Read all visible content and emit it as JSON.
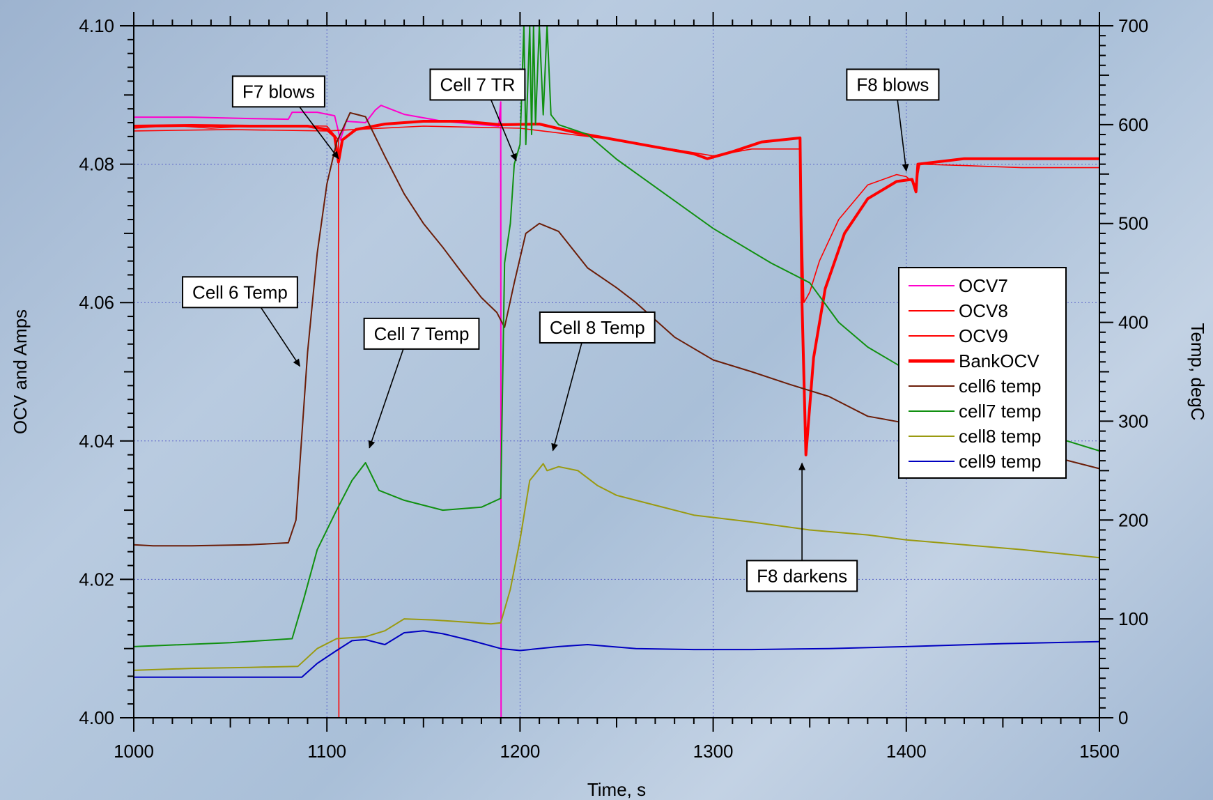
{
  "chart_data": {
    "type": "line",
    "title": "",
    "xlabel": "Time, s",
    "ylabel_left": "OCV and Amps",
    "ylabel_right": "Temp, degC",
    "xlim": [
      1000,
      1500
    ],
    "ylim_left": [
      4.0,
      4.1
    ],
    "ylim_right": [
      0,
      700
    ],
    "x_ticks": [
      "1000",
      "1100",
      "1200",
      "1300",
      "1400",
      "1500"
    ],
    "y_ticks_left": [
      "4.00",
      "4.02",
      "4.04",
      "4.06",
      "4.08",
      "4.10"
    ],
    "y_ticks_right": [
      "0",
      "100",
      "200",
      "300",
      "400",
      "500",
      "600",
      "700"
    ],
    "grid": true,
    "legend_position": "right",
    "series": [
      {
        "name": "OCV7",
        "axis": "left",
        "color": "#ff00cc",
        "width": 2,
        "legend_width": 2,
        "points": [
          [
            1000,
            4.0868
          ],
          [
            1030,
            4.0868
          ],
          [
            1060,
            4.0866
          ],
          [
            1080,
            4.0865
          ],
          [
            1082,
            4.0875
          ],
          [
            1095,
            4.0875
          ],
          [
            1104,
            4.087
          ],
          [
            1107,
            4.0835
          ],
          [
            1110,
            4.0862
          ],
          [
            1120,
            4.086
          ],
          [
            1125,
            4.0878
          ],
          [
            1128,
            4.0885
          ],
          [
            1140,
            4.0872
          ],
          [
            1160,
            4.0862
          ],
          [
            1180,
            4.0857
          ],
          [
            1189,
            4.0855
          ],
          [
            1190,
            4.089
          ],
          [
            1190.2,
            4.0
          ]
        ]
      },
      {
        "name": "OCV8",
        "axis": "left",
        "color": "#ff0000",
        "width": 1.6,
        "legend_width": 2,
        "points": [
          [
            1000,
            4.0852
          ],
          [
            1020,
            4.0856
          ],
          [
            1040,
            4.0852
          ],
          [
            1060,
            4.0855
          ],
          [
            1080,
            4.0856
          ],
          [
            1100,
            4.0855
          ],
          [
            1106,
            4.0835
          ],
          [
            1106.2,
            4.0
          ]
        ]
      },
      {
        "name": "OCV9",
        "axis": "left",
        "color": "#ff0000",
        "width": 1.6,
        "legend_width": 2,
        "points": [
          [
            1000,
            4.0848
          ],
          [
            1050,
            4.085
          ],
          [
            1100,
            4.0848
          ],
          [
            1150,
            4.0855
          ],
          [
            1200,
            4.0852
          ],
          [
            1250,
            4.0835
          ],
          [
            1300,
            4.0812
          ],
          [
            1320,
            4.0822
          ],
          [
            1345,
            4.0822
          ],
          [
            1347,
            4.06
          ],
          [
            1350,
            4.0615
          ],
          [
            1355,
            4.066
          ],
          [
            1365,
            4.072
          ],
          [
            1380,
            4.077
          ],
          [
            1395,
            4.0785
          ],
          [
            1400,
            4.0782
          ],
          [
            1405,
            4.077
          ],
          [
            1407,
            4.08
          ],
          [
            1430,
            4.0798
          ],
          [
            1460,
            4.0795
          ],
          [
            1500,
            4.0795
          ]
        ]
      },
      {
        "name": "BankOCV",
        "axis": "left",
        "color": "#ff0000",
        "width": 4,
        "legend_width": 5,
        "points": [
          [
            1000,
            4.0855
          ],
          [
            1030,
            4.0856
          ],
          [
            1060,
            4.0855
          ],
          [
            1090,
            4.0855
          ],
          [
            1100,
            4.085
          ],
          [
            1104,
            4.084
          ],
          [
            1106,
            4.0803
          ],
          [
            1108,
            4.0835
          ],
          [
            1115,
            4.085
          ],
          [
            1130,
            4.0858
          ],
          [
            1150,
            4.0862
          ],
          [
            1170,
            4.0862
          ],
          [
            1190,
            4.0857
          ],
          [
            1210,
            4.0858
          ],
          [
            1230,
            4.0845
          ],
          [
            1250,
            4.0835
          ],
          [
            1270,
            4.0825
          ],
          [
            1290,
            4.0815
          ],
          [
            1297,
            4.0808
          ],
          [
            1310,
            4.0818
          ],
          [
            1325,
            4.0832
          ],
          [
            1345,
            4.0838
          ],
          [
            1346,
            4.06
          ],
          [
            1348,
            4.038
          ],
          [
            1352,
            4.052
          ],
          [
            1358,
            4.062
          ],
          [
            1368,
            4.07
          ],
          [
            1380,
            4.075
          ],
          [
            1395,
            4.0775
          ],
          [
            1403,
            4.0778
          ],
          [
            1405,
            4.076
          ],
          [
            1406,
            4.08
          ],
          [
            1430,
            4.0808
          ],
          [
            1460,
            4.0808
          ],
          [
            1500,
            4.0808
          ]
        ]
      },
      {
        "name": "cell6 temp",
        "axis": "right",
        "color": "#6b1d08",
        "width": 2,
        "legend_width": 2,
        "points": [
          [
            1000,
            175
          ],
          [
            1010,
            174
          ],
          [
            1030,
            174
          ],
          [
            1060,
            175
          ],
          [
            1080,
            177
          ],
          [
            1084,
            200
          ],
          [
            1090,
            370
          ],
          [
            1095,
            470
          ],
          [
            1100,
            540
          ],
          [
            1105,
            582
          ],
          [
            1112,
            612
          ],
          [
            1120,
            608
          ],
          [
            1130,
            568
          ],
          [
            1140,
            530
          ],
          [
            1150,
            500
          ],
          [
            1160,
            476
          ],
          [
            1170,
            450
          ],
          [
            1180,
            425
          ],
          [
            1188,
            410
          ],
          [
            1192,
            395
          ],
          [
            1197,
            440
          ],
          [
            1203,
            490
          ],
          [
            1210,
            500
          ],
          [
            1220,
            492
          ],
          [
            1235,
            455
          ],
          [
            1250,
            435
          ],
          [
            1260,
            420
          ],
          [
            1280,
            385
          ],
          [
            1300,
            362
          ],
          [
            1320,
            350
          ],
          [
            1340,
            337
          ],
          [
            1360,
            325
          ],
          [
            1380,
            305
          ],
          [
            1400,
            298
          ],
          [
            1420,
            290
          ],
          [
            1440,
            280
          ],
          [
            1460,
            272
          ],
          [
            1480,
            262
          ],
          [
            1500,
            252
          ]
        ]
      },
      {
        "name": "cell7 temp",
        "axis": "right",
        "color": "#109010",
        "width": 2,
        "legend_width": 2,
        "points": [
          [
            1000,
            72
          ],
          [
            1050,
            76
          ],
          [
            1082,
            80
          ],
          [
            1088,
            120
          ],
          [
            1095,
            170
          ],
          [
            1105,
            210
          ],
          [
            1113,
            240
          ],
          [
            1120,
            258
          ],
          [
            1127,
            230
          ],
          [
            1140,
            220
          ],
          [
            1160,
            210
          ],
          [
            1180,
            213
          ],
          [
            1190,
            222
          ],
          [
            1192,
            460
          ],
          [
            1195,
            500
          ],
          [
            1197,
            560
          ],
          [
            1200,
            580
          ],
          [
            1202,
            700
          ],
          [
            1203,
            580
          ],
          [
            1205,
            700
          ],
          [
            1206,
            590
          ],
          [
            1207,
            700
          ],
          [
            1208,
            600
          ],
          [
            1210,
            700
          ],
          [
            1212,
            610
          ],
          [
            1214,
            700
          ],
          [
            1216,
            610
          ],
          [
            1220,
            600
          ],
          [
            1235,
            590
          ],
          [
            1250,
            565
          ],
          [
            1275,
            530
          ],
          [
            1300,
            495
          ],
          [
            1330,
            460
          ],
          [
            1350,
            440
          ],
          [
            1365,
            400
          ],
          [
            1380,
            375
          ],
          [
            1400,
            352
          ],
          [
            1420,
            330
          ],
          [
            1440,
            310
          ],
          [
            1460,
            295
          ],
          [
            1480,
            282
          ],
          [
            1500,
            270
          ]
        ]
      },
      {
        "name": "cell8 temp",
        "axis": "right",
        "color": "#9a9a10",
        "width": 2,
        "legend_width": 2,
        "points": [
          [
            1000,
            48
          ],
          [
            1030,
            50
          ],
          [
            1060,
            51
          ],
          [
            1085,
            52
          ],
          [
            1095,
            70
          ],
          [
            1105,
            80
          ],
          [
            1120,
            82
          ],
          [
            1130,
            88
          ],
          [
            1140,
            100
          ],
          [
            1155,
            99
          ],
          [
            1170,
            97
          ],
          [
            1185,
            95
          ],
          [
            1190,
            96
          ],
          [
            1195,
            130
          ],
          [
            1200,
            180
          ],
          [
            1205,
            240
          ],
          [
            1210,
            252
          ],
          [
            1212,
            257
          ],
          [
            1214,
            250
          ],
          [
            1220,
            254
          ],
          [
            1230,
            250
          ],
          [
            1240,
            235
          ],
          [
            1250,
            225
          ],
          [
            1270,
            215
          ],
          [
            1290,
            205
          ],
          [
            1320,
            198
          ],
          [
            1350,
            190
          ],
          [
            1380,
            185
          ],
          [
            1400,
            180
          ],
          [
            1430,
            175
          ],
          [
            1460,
            170
          ],
          [
            1500,
            162
          ]
        ]
      },
      {
        "name": "cell9 temp",
        "axis": "right",
        "color": "#0000c0",
        "width": 2,
        "legend_width": 2,
        "points": [
          [
            1000,
            41
          ],
          [
            1030,
            41
          ],
          [
            1060,
            41
          ],
          [
            1087,
            41
          ],
          [
            1095,
            55
          ],
          [
            1105,
            68
          ],
          [
            1113,
            78
          ],
          [
            1120,
            79
          ],
          [
            1130,
            74
          ],
          [
            1140,
            86
          ],
          [
            1150,
            88
          ],
          [
            1160,
            85
          ],
          [
            1175,
            78
          ],
          [
            1190,
            70
          ],
          [
            1200,
            68
          ],
          [
            1220,
            72
          ],
          [
            1235,
            74
          ],
          [
            1260,
            70
          ],
          [
            1290,
            69
          ],
          [
            1320,
            69
          ],
          [
            1360,
            70
          ],
          [
            1400,
            72
          ],
          [
            1450,
            75
          ],
          [
            1500,
            77
          ]
        ]
      }
    ],
    "annotations": [
      {
        "text": "F7 blows",
        "box_x": 1075,
        "box_y": 4.0905,
        "arrow_to": [
          1106,
          4.0808
        ]
      },
      {
        "text": "Cell 7 TR",
        "box_x": 1178,
        "box_y": 4.0915,
        "arrow_to": [
          1198,
          4.0805
        ]
      },
      {
        "text": "F8 blows",
        "box_x": 1393,
        "box_y": 4.0915,
        "arrow_to": [
          1400,
          4.079
        ]
      },
      {
        "text": "Cell 6 Temp",
        "box_x": 1055,
        "box_y": 4.0615,
        "arrow_to": [
          1086,
          4.0508
        ]
      },
      {
        "text": "Cell 7 Temp",
        "box_x": 1149,
        "box_y": 4.0555,
        "arrow_to": [
          1122,
          4.039
        ]
      },
      {
        "text": "Cell 8 Temp",
        "box_x": 1240,
        "box_y": 4.0564,
        "arrow_to": [
          1217,
          4.0386
        ]
      },
      {
        "text": "F8 darkens",
        "box_x": 1346,
        "box_y": 4.0205,
        "arrow_to": [
          1346,
          4.0368
        ]
      }
    ]
  }
}
